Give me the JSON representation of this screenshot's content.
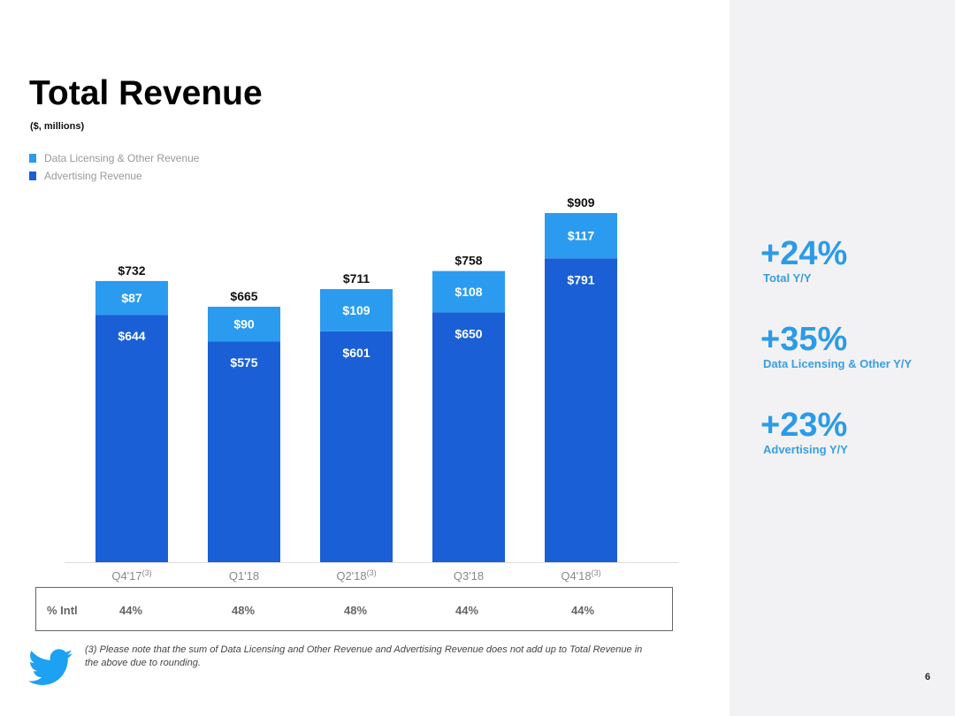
{
  "title": "Total Revenue",
  "subtitle": "($, millions)",
  "colors": {
    "data_licensing": "#2b9bf0",
    "advertising": "#1a5fd6",
    "stat": "#2b9be8"
  },
  "chart_data": {
    "type": "bar",
    "stacked": true,
    "categories": [
      "Q4'17",
      "Q1'18",
      "Q2'18",
      "Q3'18",
      "Q4'18"
    ],
    "category_notes": [
      "(3)",
      "",
      "(3)",
      "",
      "(3)"
    ],
    "series": [
      {
        "name": "Advertising Revenue",
        "values": [
          644,
          575,
          601,
          650,
          791
        ],
        "labels": [
          "$644",
          "$575",
          "$601",
          "$650",
          "$791"
        ]
      },
      {
        "name": "Data Licensing & Other Revenue",
        "values": [
          87,
          90,
          109,
          108,
          117
        ],
        "labels": [
          "$87",
          "$90",
          "$109",
          "$108",
          "$117"
        ]
      }
    ],
    "totals": [
      732,
      665,
      711,
      758,
      909
    ],
    "total_labels": [
      "$732",
      "$665",
      "$711",
      "$758",
      "$909"
    ],
    "legend": [
      "Data Licensing & Other Revenue",
      "Advertising Revenue"
    ],
    "legend_position": "top-left",
    "ylim": [
      0,
      909
    ],
    "grid": false
  },
  "intl": {
    "label": "% Intl",
    "values": [
      "44%",
      "48%",
      "48%",
      "44%",
      "44%"
    ]
  },
  "stats": [
    {
      "value": "+24%",
      "label": "Total Y/Y"
    },
    {
      "value": "+35%",
      "label": "Data Licensing & Other Y/Y"
    },
    {
      "value": "+23%",
      "label": "Advertising Y/Y"
    }
  ],
  "footnote": "(3) Please note that the sum of Data Licensing and Other Revenue and Advertising Revenue does not add up to Total Revenue in the above due to rounding.",
  "logo": "twitter-bird",
  "page_number": "6"
}
